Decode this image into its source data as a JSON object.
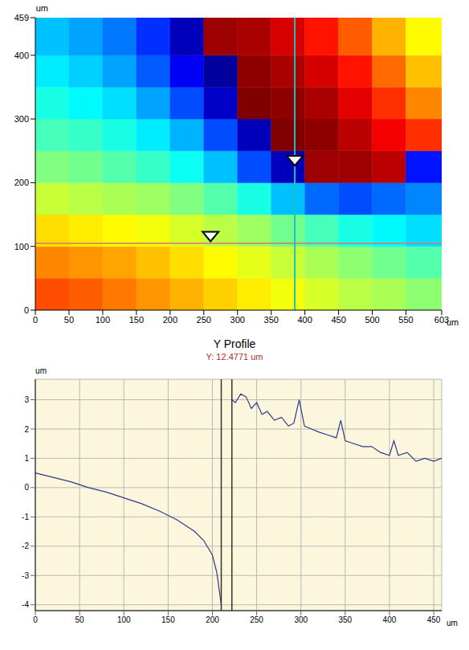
{
  "chart_data": [
    {
      "type": "heatmap",
      "xlabel": "um",
      "ylabel": "um",
      "xlim": [
        0,
        603
      ],
      "ylim": [
        0,
        459
      ],
      "xticks": [
        0,
        50,
        100,
        150,
        200,
        250,
        300,
        350,
        400,
        450,
        500,
        550,
        603
      ],
      "yticks": [
        0,
        100,
        200,
        300,
        400,
        459
      ],
      "cells": {
        "x_edges": [
          0,
          50,
          100,
          150,
          200,
          250,
          300,
          350,
          400,
          450,
          500,
          550,
          603
        ],
        "y_edges": [
          0,
          50,
          100,
          150,
          200,
          250,
          300,
          350,
          400,
          459
        ],
        "z": [
          [
            1.6,
            1.5,
            1.3,
            1.1,
            0.9,
            0.7,
            0.5,
            0.3,
            0.1,
            -0.1,
            -0.2,
            -0.4
          ],
          [
            1.2,
            1.1,
            1.0,
            0.8,
            0.6,
            0.4,
            0.2,
            0.0,
            -0.2,
            -0.4,
            -0.6,
            -0.8
          ],
          [
            0.6,
            0.5,
            0.4,
            0.3,
            0.1,
            -0.1,
            -0.3,
            -0.6,
            -0.9,
            -1.2,
            -1.4,
            -1.6
          ],
          [
            0.0,
            -0.1,
            -0.2,
            -0.3,
            -0.5,
            -0.8,
            -1.2,
            -1.8,
            -2.4,
            -2.6,
            -2.4,
            -2.2
          ],
          [
            -0.5,
            -0.6,
            -0.8,
            -1.0,
            -1.3,
            -1.8,
            -2.6,
            -3.6,
            2.8,
            2.8,
            2.6,
            -3.0
          ],
          [
            -0.9,
            -1.0,
            -1.2,
            -1.5,
            -1.9,
            -2.6,
            -3.6,
            3.0,
            2.9,
            2.6,
            2.2,
            1.8
          ],
          [
            -1.2,
            -1.4,
            -1.6,
            -2.0,
            -2.6,
            -3.5,
            3.0,
            2.9,
            2.7,
            2.3,
            1.8,
            1.2
          ],
          [
            -1.5,
            -1.7,
            -2.0,
            -2.5,
            -3.2,
            -3.8,
            2.9,
            2.7,
            2.4,
            2.0,
            1.4,
            0.8
          ],
          [
            -1.8,
            -2.0,
            -2.3,
            -2.8,
            -3.6,
            2.8,
            2.7,
            2.4,
            2.0,
            1.5,
            0.9,
            0.4
          ]
        ]
      },
      "color_range": [
        -4,
        3
      ],
      "cursor_x": 385,
      "cursor_y": 105,
      "markers": [
        {
          "x": 260,
          "y": 113
        },
        {
          "x": 385,
          "y": 232
        }
      ]
    },
    {
      "type": "line",
      "title": "Y Profile",
      "annotation": "Y: 12.4771 um",
      "xlabel": "um",
      "ylabel": "um",
      "xlim": [
        0,
        459
      ],
      "ylim": [
        -4.2,
        3.7
      ],
      "xticks": [
        0,
        50,
        100,
        150,
        200,
        250,
        300,
        350,
        400,
        450
      ],
      "yticks": [
        -4,
        -3,
        -2,
        -1,
        0,
        1,
        2,
        3
      ],
      "grid": true,
      "color": "#2b3a8c",
      "cursors": [
        210,
        222
      ],
      "x": [
        0,
        20,
        40,
        60,
        80,
        100,
        120,
        140,
        160,
        180,
        190,
        200,
        205,
        210,
        216,
        222,
        226,
        232,
        238,
        244,
        250,
        256,
        262,
        270,
        278,
        286,
        292,
        298,
        304,
        312,
        320,
        330,
        340,
        345,
        350,
        360,
        370,
        380,
        390,
        400,
        405,
        410,
        420,
        430,
        440,
        450,
        459
      ],
      "values": [
        0.5,
        0.35,
        0.2,
        0.0,
        -0.15,
        -0.35,
        -0.55,
        -0.8,
        -1.1,
        -1.5,
        -1.8,
        -2.3,
        -2.9,
        -4.0,
        null,
        3.0,
        2.9,
        3.2,
        3.1,
        2.7,
        2.9,
        2.5,
        2.6,
        2.3,
        2.4,
        2.1,
        2.2,
        3.0,
        2.1,
        2.0,
        1.9,
        1.8,
        1.7,
        2.3,
        1.6,
        1.5,
        1.4,
        1.4,
        1.2,
        1.1,
        1.6,
        1.1,
        1.2,
        0.9,
        1.0,
        0.9,
        1.0
      ]
    }
  ]
}
